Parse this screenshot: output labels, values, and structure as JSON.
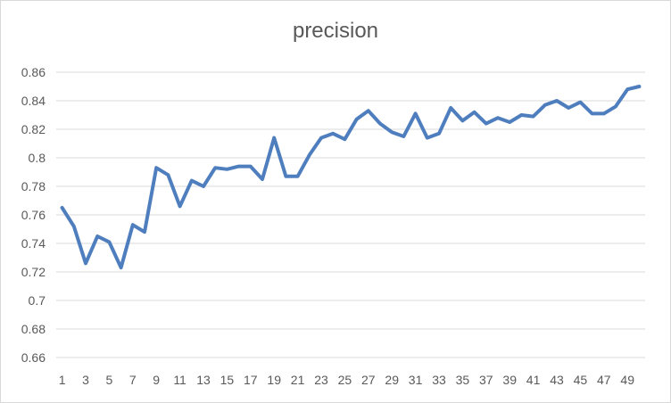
{
  "chart_data": {
    "type": "line",
    "title": "precision",
    "xlabel": "",
    "ylabel": "",
    "ylim": [
      0.66,
      0.86
    ],
    "y_ticks": [
      "0.66",
      "0.68",
      "0.7",
      "0.72",
      "0.74",
      "0.76",
      "0.78",
      "0.8",
      "0.82",
      "0.84",
      "0.86"
    ],
    "x_tick_labels": [
      1,
      3,
      5,
      7,
      9,
      11,
      13,
      15,
      17,
      19,
      21,
      23,
      25,
      27,
      29,
      31,
      33,
      35,
      37,
      39,
      41,
      43,
      45,
      47,
      49
    ],
    "grid": "horizontal",
    "legend": "none",
    "series_color": "#4e7ebd",
    "x": [
      1,
      2,
      3,
      4,
      5,
      6,
      7,
      8,
      9,
      10,
      11,
      12,
      13,
      14,
      15,
      16,
      17,
      18,
      19,
      20,
      21,
      22,
      23,
      24,
      25,
      26,
      27,
      28,
      29,
      30,
      31,
      32,
      33,
      34,
      35,
      36,
      37,
      38,
      39,
      40,
      41,
      42,
      43,
      44,
      45,
      46,
      47,
      48,
      49,
      50
    ],
    "series": [
      {
        "values": [
          0.765,
          0.752,
          0.726,
          0.745,
          0.741,
          0.723,
          0.753,
          0.748,
          0.793,
          0.788,
          0.766,
          0.784,
          0.78,
          0.793,
          0.792,
          0.794,
          0.794,
          0.785,
          0.814,
          0.787,
          0.787,
          0.802,
          0.814,
          0.817,
          0.813,
          0.827,
          0.833,
          0.824,
          0.818,
          0.815,
          0.831,
          0.814,
          0.817,
          0.835,
          0.826,
          0.832,
          0.824,
          0.828,
          0.825,
          0.83,
          0.829,
          0.837,
          0.84,
          0.835,
          0.839,
          0.831,
          0.831,
          0.836,
          0.848,
          0.85
        ]
      }
    ]
  }
}
